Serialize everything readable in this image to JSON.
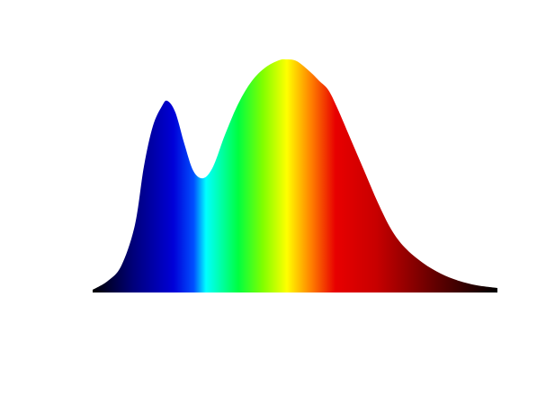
{
  "chart_data": {
    "type": "area",
    "x": [
      0,
      17,
      32,
      47,
      57,
      67,
      77,
      83,
      92,
      102,
      112,
      123,
      134,
      147,
      162,
      177,
      192,
      207,
      215,
      227,
      242,
      252,
      262,
      272,
      287,
      302,
      317,
      332,
      347,
      367,
      387,
      407,
      427,
      450
    ],
    "values": [
      3,
      13,
      30,
      75,
      140,
      185,
      207,
      213,
      200,
      165,
      135,
      127,
      140,
      175,
      210,
      235,
      250,
      258,
      259,
      257,
      245,
      235,
      225,
      205,
      170,
      135,
      100,
      70,
      50,
      33,
      21,
      13,
      8,
      5
    ],
    "xlim": [
      0,
      450
    ],
    "ylim": [
      0,
      270
    ]
  }
}
